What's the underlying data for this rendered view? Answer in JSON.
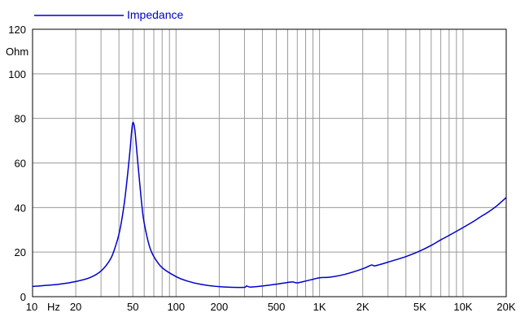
{
  "chart_data": {
    "type": "line",
    "title": "",
    "xlabel": "Hz",
    "ylabel": "Ohm",
    "x_scale": "log",
    "xlim": [
      10,
      20000
    ],
    "ylim": [
      0,
      120
    ],
    "grid": true,
    "legend_position": "top-left",
    "x_tick_labels": [
      {
        "value": 10,
        "label": "10"
      },
      {
        "value": 20,
        "label": "20"
      },
      {
        "value": 50,
        "label": "50"
      },
      {
        "value": 100,
        "label": "100"
      },
      {
        "value": 200,
        "label": "200"
      },
      {
        "value": 500,
        "label": "500"
      },
      {
        "value": 1000,
        "label": "1K"
      },
      {
        "value": 2000,
        "label": "2K"
      },
      {
        "value": 5000,
        "label": "5K"
      },
      {
        "value": 10000,
        "label": "10K"
      },
      {
        "value": 20000,
        "label": "20K"
      }
    ],
    "y_ticks": [
      0,
      20,
      40,
      60,
      80,
      100,
      120
    ],
    "series": [
      {
        "name": "Impedance",
        "color": "#0000cc",
        "points": [
          [
            10,
            4.6
          ],
          [
            15,
            5.5
          ],
          [
            20,
            6.8
          ],
          [
            25,
            8.5
          ],
          [
            30,
            11.5
          ],
          [
            35,
            17
          ],
          [
            38,
            23
          ],
          [
            40,
            28
          ],
          [
            42,
            35
          ],
          [
            44,
            44
          ],
          [
            46,
            55
          ],
          [
            48,
            67
          ],
          [
            49,
            74
          ],
          [
            50,
            78
          ],
          [
            51,
            77
          ],
          [
            52,
            73
          ],
          [
            54,
            61
          ],
          [
            56,
            50
          ],
          [
            58,
            40
          ],
          [
            60,
            33
          ],
          [
            65,
            23
          ],
          [
            70,
            18
          ],
          [
            80,
            13
          ],
          [
            100,
            9
          ],
          [
            120,
            7
          ],
          [
            150,
            5.5
          ],
          [
            200,
            4.5
          ],
          [
            250,
            4.2
          ],
          [
            300,
            4.2
          ],
          [
            310,
            4.8
          ],
          [
            330,
            4.3
          ],
          [
            400,
            4.8
          ],
          [
            500,
            5.6
          ],
          [
            600,
            6.4
          ],
          [
            650,
            6.6
          ],
          [
            700,
            6.2
          ],
          [
            800,
            7
          ],
          [
            900,
            7.8
          ],
          [
            1000,
            8.5
          ],
          [
            1200,
            8.8
          ],
          [
            1500,
            10
          ],
          [
            2000,
            12.5
          ],
          [
            2300,
            14.2
          ],
          [
            2400,
            13.8
          ],
          [
            2600,
            14.3
          ],
          [
            3000,
            15.5
          ],
          [
            4000,
            18
          ],
          [
            5000,
            20.5
          ],
          [
            6000,
            23
          ],
          [
            7000,
            25.5
          ],
          [
            8000,
            27.5
          ],
          [
            10000,
            31
          ],
          [
            12000,
            34
          ],
          [
            13000,
            35.5
          ],
          [
            15000,
            38
          ],
          [
            17000,
            40.5
          ],
          [
            20000,
            44.5
          ]
        ]
      }
    ]
  }
}
